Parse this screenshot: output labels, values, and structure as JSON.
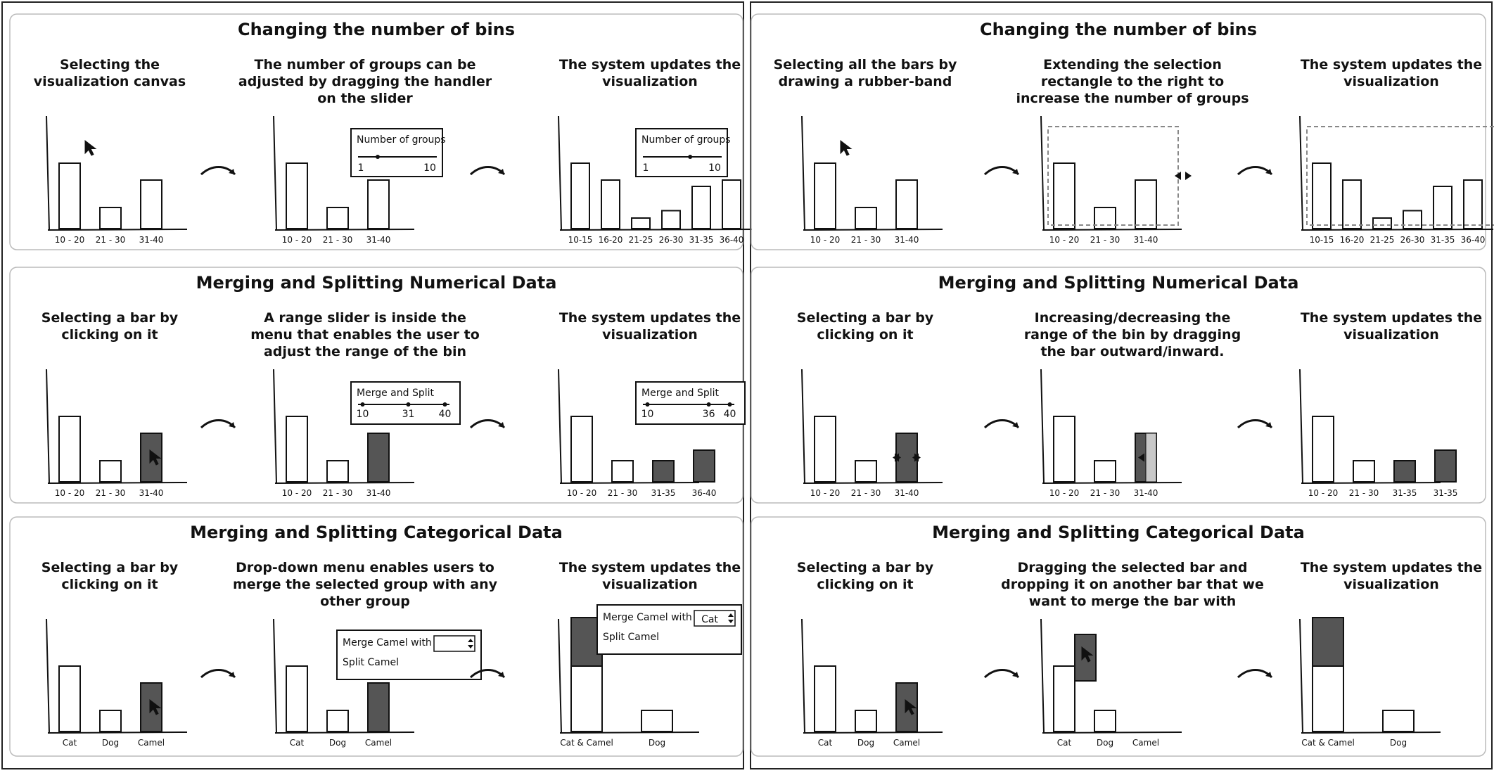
{
  "columns": [
    {
      "panels": [
        {
          "title": "Changing the number of bins",
          "steps": [
            {
              "caption": [
                "Selecting the",
                "visualization canvas"
              ],
              "chart": {
                "bars": [
                  {
                    "label": "10 - 20",
                    "value": 0.62
                  },
                  {
                    "label": "21 - 30",
                    "value": 0.2
                  },
                  {
                    "label": "31-40",
                    "value": 0.46
                  }
                ],
                "cursor": "canvas"
              }
            },
            {
              "caption": [
                "The number of groups can be",
                "adjusted by dragging the handler",
                "on the slider"
              ],
              "chart": {
                "bars": [
                  {
                    "label": "10 - 20",
                    "value": 0.62
                  },
                  {
                    "label": "21 - 30",
                    "value": 0.2
                  },
                  {
                    "label": "31-40",
                    "value": 0.46
                  }
                ]
              },
              "menu": {
                "type": "slider",
                "title": "Number of groups",
                "min": "1",
                "max": "10",
                "handle": 0.25
              }
            },
            {
              "caption": [
                "The system updates the",
                "visualization"
              ],
              "chart": {
                "bars": [
                  {
                    "label": "10-15",
                    "value": 0.62
                  },
                  {
                    "label": "16-20",
                    "value": 0.46
                  },
                  {
                    "label": "21-25",
                    "value": 0.1
                  },
                  {
                    "label": "26-30",
                    "value": 0.17
                  },
                  {
                    "label": "31-35",
                    "value": 0.4
                  },
                  {
                    "label": "36-40",
                    "value": 0.46
                  }
                ]
              },
              "menu": {
                "type": "slider",
                "title": "Number of groups",
                "min": "1",
                "max": "10",
                "handle": 0.6
              }
            }
          ]
        },
        {
          "title": "Merging and Splitting Numerical Data",
          "steps": [
            {
              "caption": [
                "Selecting a bar by",
                "clicking on it"
              ],
              "chart": {
                "bars": [
                  {
                    "label": "10 - 20",
                    "value": 0.62
                  },
                  {
                    "label": "21 - 30",
                    "value": 0.2
                  },
                  {
                    "label": "31-40",
                    "value": 0.46,
                    "filled": true
                  }
                ],
                "cursor": "bar"
              }
            },
            {
              "caption": [
                "A range slider is inside the",
                "menu that enables the user to",
                "adjust the range of the bin"
              ],
              "chart": {
                "bars": [
                  {
                    "label": "10 - 20",
                    "value": 0.62
                  },
                  {
                    "label": "21 - 30",
                    "value": 0.2
                  },
                  {
                    "label": "31-40",
                    "value": 0.46,
                    "filled": true
                  }
                ]
              },
              "menu": {
                "type": "range",
                "title": "Merge and Split",
                "ticks": [
                  "10",
                  "31",
                  "40"
                ]
              }
            },
            {
              "caption": [
                "The system updates the",
                "visualization"
              ],
              "chart": {
                "bars": [
                  {
                    "label": "10 - 20",
                    "value": 0.62
                  },
                  {
                    "label": "21 - 30",
                    "value": 0.2
                  },
                  {
                    "label": "31-35",
                    "value": 0.2,
                    "filled": true
                  },
                  {
                    "label": "36-40",
                    "value": 0.3,
                    "filled": true
                  }
                ]
              },
              "menu": {
                "type": "range",
                "title": "Merge and Split",
                "ticks": [
                  "10",
                  "36",
                  "40"
                ]
              }
            }
          ]
        },
        {
          "title": "Merging and Splitting Categorical Data",
          "steps": [
            {
              "caption": [
                "Selecting a bar by",
                "clicking on it"
              ],
              "chart": {
                "bars": [
                  {
                    "label": "Cat",
                    "value": 0.62
                  },
                  {
                    "label": "Dog",
                    "value": 0.2
                  },
                  {
                    "label": "Camel",
                    "value": 0.46,
                    "filled": true
                  }
                ],
                "cursor": "bar"
              }
            },
            {
              "caption": [
                "Drop-down menu enables users to",
                "merge the selected group with any",
                "other group"
              ],
              "chart": {
                "bars": [
                  {
                    "label": "Cat",
                    "value": 0.62
                  },
                  {
                    "label": "Dog",
                    "value": 0.2
                  },
                  {
                    "label": "Camel",
                    "value": 0.46,
                    "filled": true
                  }
                ]
              },
              "menu": {
                "type": "dropdown",
                "line1": "Merge Camel with",
                "line2": "Split Camel",
                "selected": ""
              }
            },
            {
              "caption": [
                "The system updates the",
                "visualization"
              ],
              "chart": {
                "bars": [
                  {
                    "label": "Cat & Camel",
                    "value": 1.08,
                    "stack": 0.46
                  },
                  {
                    "label": "Dog",
                    "value": 0.2
                  }
                ]
              },
              "menu": {
                "type": "dropdown",
                "line1": "Merge Camel with",
                "line2": "Split Camel",
                "selected": "Cat"
              }
            }
          ]
        }
      ]
    },
    {
      "panels": [
        {
          "title": "Changing the number of bins",
          "steps": [
            {
              "caption": [
                "Selecting all the bars by",
                "drawing a rubber-band"
              ],
              "chart": {
                "bars": [
                  {
                    "label": "10 - 20",
                    "value": 0.62
                  },
                  {
                    "label": "21 - 30",
                    "value": 0.2
                  },
                  {
                    "label": "31-40",
                    "value": 0.46
                  }
                ],
                "cursor": "canvas"
              }
            },
            {
              "caption": [
                "Extending the selection",
                "rectangle to the right to",
                "increase the number of groups"
              ],
              "chart": {
                "bars": [
                  {
                    "label": "10 - 20",
                    "value": 0.62
                  },
                  {
                    "label": "21 - 30",
                    "value": 0.2
                  },
                  {
                    "label": "31-40",
                    "value": 0.46
                  }
                ],
                "selection": true,
                "handle": "double"
              }
            },
            {
              "caption": [
                "The system updates the",
                "visualization"
              ],
              "chart": {
                "bars": [
                  {
                    "label": "10-15",
                    "value": 0.62
                  },
                  {
                    "label": "16-20",
                    "value": 0.46
                  },
                  {
                    "label": "21-25",
                    "value": 0.1
                  },
                  {
                    "label": "26-30",
                    "value": 0.17
                  },
                  {
                    "label": "31-35",
                    "value": 0.4
                  },
                  {
                    "label": "36-40",
                    "value": 0.46
                  }
                ],
                "selection": true,
                "handle": "single"
              }
            }
          ]
        },
        {
          "title": "Merging and Splitting Numerical Data",
          "steps": [
            {
              "caption": [
                "Selecting a bar by",
                "clicking on it"
              ],
              "chart": {
                "bars": [
                  {
                    "label": "10 - 20",
                    "value": 0.62
                  },
                  {
                    "label": "21 - 30",
                    "value": 0.2
                  },
                  {
                    "label": "31-40",
                    "value": 0.46,
                    "filled": true,
                    "arrows": "both"
                  }
                ]
              }
            },
            {
              "caption": [
                "Increasing/decreasing the",
                "range of the bin by dragging",
                "the bar outward/inward."
              ],
              "chart": {
                "bars": [
                  {
                    "label": "10 - 20",
                    "value": 0.62
                  },
                  {
                    "label": "21 - 30",
                    "value": 0.2
                  },
                  {
                    "label": "31-40",
                    "value": 0.46,
                    "filled": true,
                    "ghost": true,
                    "arrows": "left"
                  }
                ]
              }
            },
            {
              "caption": [
                "The system updates the",
                "visualization"
              ],
              "chart": {
                "bars": [
                  {
                    "label": "10 - 20",
                    "value": 0.62
                  },
                  {
                    "label": "21 - 30",
                    "value": 0.2
                  },
                  {
                    "label": "31-35",
                    "value": 0.2,
                    "filled": true
                  },
                  {
                    "label": "31-35",
                    "value": 0.3,
                    "filled": true
                  }
                ]
              }
            }
          ]
        },
        {
          "title": "Merging and Splitting Categorical Data",
          "steps": [
            {
              "caption": [
                "Selecting a bar by",
                "clicking on it"
              ],
              "chart": {
                "bars": [
                  {
                    "label": "Cat",
                    "value": 0.62
                  },
                  {
                    "label": "Dog",
                    "value": 0.2
                  },
                  {
                    "label": "Camel",
                    "value": 0.46,
                    "filled": true
                  }
                ],
                "cursor": "bar"
              }
            },
            {
              "caption": [
                "Dragging the selected bar and",
                "dropping it on another bar that we",
                "want to merge the bar with"
              ],
              "chart": {
                "bars": [
                  {
                    "label": "Cat",
                    "value": 0.62
                  },
                  {
                    "label": "Dog",
                    "value": 0.2
                  },
                  {
                    "label": "Camel",
                    "value": 0
                  }
                ],
                "dragged": true
              }
            },
            {
              "caption": [
                "The system updates the",
                "visualization"
              ],
              "chart": {
                "bars": [
                  {
                    "label": "Cat & Camel",
                    "value": 1.08,
                    "stack": 0.46
                  },
                  {
                    "label": "Dog",
                    "value": 0.2
                  }
                ]
              }
            }
          ]
        }
      ]
    }
  ]
}
